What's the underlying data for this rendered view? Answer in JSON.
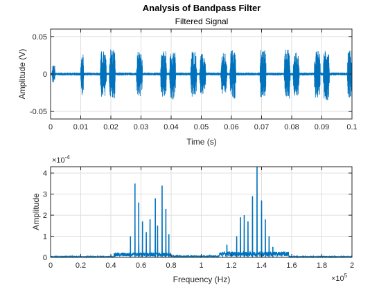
{
  "figure": {
    "suptitle": "Analysis of Bandpass Filter",
    "line_color": "#0072BD",
    "grid_color": "#DFDFDF",
    "axis_color": "#262626"
  },
  "chart_data": [
    {
      "type": "line",
      "title": "Filtered Signal",
      "xlabel": "Time (s)",
      "ylabel": "Amplitude (V)",
      "xlim": [
        0,
        0.1
      ],
      "ylim": [
        -0.06,
        0.06
      ],
      "grid": true,
      "xticks": [
        0,
        0.01,
        0.02,
        0.03,
        0.04,
        0.05,
        0.06,
        0.07,
        0.08,
        0.09,
        0.1
      ],
      "xtick_labels": [
        "0",
        "0.01",
        "0.02",
        "0.03",
        "0.04",
        "0.05",
        "0.06",
        "0.07",
        "0.08",
        "0.09",
        "0.1"
      ],
      "yticks": [
        -0.05,
        0,
        0.05
      ],
      "ytick_labels": [
        "-0.05",
        "0",
        "0.05"
      ],
      "series": [
        {
          "description": "bursts of tone pairs",
          "noise_floor_amplitude": 0.002,
          "bursts": [
            {
              "t_start": 0.0005,
              "t_end": 0.0015,
              "peak": 0.012
            },
            {
              "t_start": 0.01,
              "t_end": 0.011,
              "peak": 0.03
            },
            {
              "t_start": 0.0165,
              "t_end": 0.0185,
              "peak": 0.031
            },
            {
              "t_start": 0.0195,
              "t_end": 0.0215,
              "peak": 0.035
            },
            {
              "t_start": 0.0285,
              "t_end": 0.0305,
              "peak": 0.032
            },
            {
              "t_start": 0.0365,
              "t_end": 0.0385,
              "peak": 0.032
            },
            {
              "t_start": 0.0395,
              "t_end": 0.0415,
              "peak": 0.035
            },
            {
              "t_start": 0.0465,
              "t_end": 0.0485,
              "peak": 0.032
            },
            {
              "t_start": 0.0495,
              "t_end": 0.0515,
              "peak": 0.027
            },
            {
              "t_start": 0.0565,
              "t_end": 0.0585,
              "peak": 0.028
            },
            {
              "t_start": 0.0595,
              "t_end": 0.0615,
              "peak": 0.033
            },
            {
              "t_start": 0.0695,
              "t_end": 0.0715,
              "peak": 0.034
            },
            {
              "t_start": 0.0775,
              "t_end": 0.0795,
              "peak": 0.033
            },
            {
              "t_start": 0.0805,
              "t_end": 0.0825,
              "peak": 0.029
            },
            {
              "t_start": 0.0875,
              "t_end": 0.0895,
              "peak": 0.032
            },
            {
              "t_start": 0.0905,
              "t_end": 0.0925,
              "peak": 0.035
            },
            {
              "t_start": 0.0985,
              "t_end": 0.1,
              "peak": 0.032
            }
          ]
        }
      ]
    },
    {
      "type": "line",
      "title": "",
      "xlabel": "Frequency (Hz)",
      "ylabel": "Amplitude",
      "xlim": [
        0,
        200000
      ],
      "ylim": [
        0,
        0.00043
      ],
      "grid": true,
      "x_exponent_label": "×10",
      "x_exponent": "5",
      "y_exponent_label": "×10",
      "y_exponent": "-4",
      "xticks": [
        0,
        20000,
        40000,
        60000,
        80000,
        100000,
        120000,
        140000,
        160000,
        180000,
        200000
      ],
      "xtick_labels": [
        "0",
        "0.2",
        "0.4",
        "0.6",
        "0.8",
        "1",
        "1.2",
        "1.4",
        "1.6",
        "1.8",
        "2"
      ],
      "yticks": [
        0,
        0.0001,
        0.0002,
        0.0003,
        0.0004
      ],
      "ytick_labels": [
        "0",
        "1",
        "2",
        "3",
        "4"
      ],
      "series": [
        {
          "description": "spectrum",
          "floor": 5e-06,
          "bands": [
            {
              "f_start": 42000,
              "f_end": 80000,
              "level": 2e-05
            },
            {
              "f_start": 80000,
              "f_end": 112000,
              "level": 8e-06
            },
            {
              "f_start": 112000,
              "f_end": 158000,
              "level": 2.5e-05
            }
          ],
          "peaks": [
            {
              "f": 53000,
              "value": 0.0001
            },
            {
              "f": 56000,
              "value": 0.00035
            },
            {
              "f": 58500,
              "value": 0.00026
            },
            {
              "f": 61000,
              "value": 0.00017
            },
            {
              "f": 63500,
              "value": 0.00012
            },
            {
              "f": 66000,
              "value": 0.00018
            },
            {
              "f": 69500,
              "value": 0.00028
            },
            {
              "f": 71000,
              "value": 0.00015
            },
            {
              "f": 74000,
              "value": 0.00034
            },
            {
              "f": 76500,
              "value": 0.00023
            },
            {
              "f": 78500,
              "value": 0.00011
            },
            {
              "f": 117000,
              "value": 6e-05
            },
            {
              "f": 123500,
              "value": 0.0001
            },
            {
              "f": 126000,
              "value": 0.00019
            },
            {
              "f": 128500,
              "value": 0.0002
            },
            {
              "f": 131000,
              "value": 0.00017
            },
            {
              "f": 134000,
              "value": 0.00029
            },
            {
              "f": 137000,
              "value": 0.00043
            },
            {
              "f": 140000,
              "value": 0.00027
            },
            {
              "f": 142500,
              "value": 0.00018
            },
            {
              "f": 145000,
              "value": 0.0001
            },
            {
              "f": 147500,
              "value": 5e-05
            }
          ]
        }
      ]
    }
  ]
}
